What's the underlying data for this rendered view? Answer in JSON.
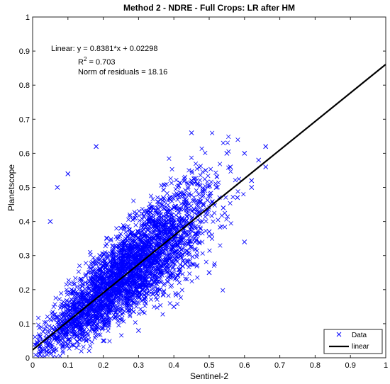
{
  "chart_data": {
    "type": "scatter",
    "title": "Method 2 - NDRE - Full Crops: LR after HM",
    "xlabel": "Sentinel-2",
    "ylabel": "Planetscope",
    "xlim": [
      0,
      1
    ],
    "ylim": [
      0,
      1
    ],
    "xticks": [
      "0",
      "0.1",
      "0.2",
      "0.3",
      "0.4",
      "0.5",
      "0.6",
      "0.7",
      "0.8",
      "0.9",
      "1"
    ],
    "yticks": [
      "0",
      "0.1",
      "0.2",
      "0.3",
      "0.4",
      "0.5",
      "0.6",
      "0.7",
      "0.8",
      "0.9",
      "1"
    ],
    "grid": false,
    "legend": {
      "placement": "bottom-right",
      "entries": [
        {
          "label": "Data",
          "marker": "x",
          "color": "#0000ff"
        },
        {
          "label": "linear",
          "line": true,
          "color": "#000000"
        }
      ]
    },
    "series": [
      {
        "name": "Data",
        "marker": "x",
        "color": "#0000ff",
        "x_range": [
          0.0,
          0.66
        ],
        "y_range": [
          0.0,
          0.66
        ],
        "approx_center": [
          0.27,
          0.25
        ],
        "points": [
          [
            0.02,
            0.01
          ],
          [
            0.03,
            0.05
          ],
          [
            0.04,
            0.03
          ],
          [
            0.05,
            0.08
          ],
          [
            0.06,
            0.02
          ],
          [
            0.07,
            0.12
          ],
          [
            0.08,
            0.05
          ],
          [
            0.09,
            0.15
          ],
          [
            0.1,
            0.09
          ],
          [
            0.11,
            0.2
          ],
          [
            0.12,
            0.07
          ],
          [
            0.13,
            0.18
          ],
          [
            0.14,
            0.13
          ],
          [
            0.15,
            0.24
          ],
          [
            0.16,
            0.1
          ],
          [
            0.17,
            0.28
          ],
          [
            0.18,
            0.16
          ],
          [
            0.19,
            0.3
          ],
          [
            0.2,
            0.19
          ],
          [
            0.21,
            0.35
          ],
          [
            0.22,
            0.14
          ],
          [
            0.23,
            0.27
          ],
          [
            0.24,
            0.22
          ],
          [
            0.25,
            0.38
          ],
          [
            0.26,
            0.2
          ],
          [
            0.27,
            0.32
          ],
          [
            0.28,
            0.26
          ],
          [
            0.29,
            0.41
          ],
          [
            0.3,
            0.18
          ],
          [
            0.31,
            0.36
          ],
          [
            0.32,
            0.29
          ],
          [
            0.33,
            0.44
          ],
          [
            0.34,
            0.24
          ],
          [
            0.35,
            0.39
          ],
          [
            0.36,
            0.31
          ],
          [
            0.37,
            0.47
          ],
          [
            0.38,
            0.27
          ],
          [
            0.39,
            0.42
          ],
          [
            0.4,
            0.33
          ],
          [
            0.41,
            0.5
          ],
          [
            0.42,
            0.3
          ],
          [
            0.43,
            0.45
          ],
          [
            0.44,
            0.36
          ],
          [
            0.45,
            0.52
          ],
          [
            0.46,
            0.34
          ],
          [
            0.47,
            0.48
          ],
          [
            0.48,
            0.4
          ],
          [
            0.49,
            0.55
          ],
          [
            0.5,
            0.37
          ],
          [
            0.52,
            0.5
          ],
          [
            0.54,
            0.44
          ],
          [
            0.56,
            0.56
          ],
          [
            0.58,
            0.47
          ],
          [
            0.6,
            0.6
          ],
          [
            0.62,
            0.52
          ],
          [
            0.64,
            0.58
          ],
          [
            0.66,
            0.62
          ],
          [
            0.18,
            0.62
          ],
          [
            0.45,
            0.66
          ],
          [
            0.05,
            0.4
          ],
          [
            0.07,
            0.5
          ],
          [
            0.1,
            0.54
          ],
          [
            0.6,
            0.34
          ],
          [
            0.5,
            0.25
          ],
          [
            0.4,
            0.15
          ],
          [
            0.3,
            0.08
          ],
          [
            0.2,
            0.05
          ],
          [
            0.66,
            0.56
          ],
          [
            0.62,
            0.5
          ],
          [
            0.55,
            0.6
          ]
        ]
      }
    ],
    "fit": {
      "name": "linear",
      "type": "line",
      "color": "#000000",
      "slope": 0.8381,
      "intercept": 0.02298,
      "x_range": [
        0,
        1
      ]
    },
    "annotations": [
      "Linear:  y = 0.8381*x + 0.02298",
      "R",
      "2",
      " = 0.703",
      "Norm of residuals = 18.16"
    ]
  }
}
